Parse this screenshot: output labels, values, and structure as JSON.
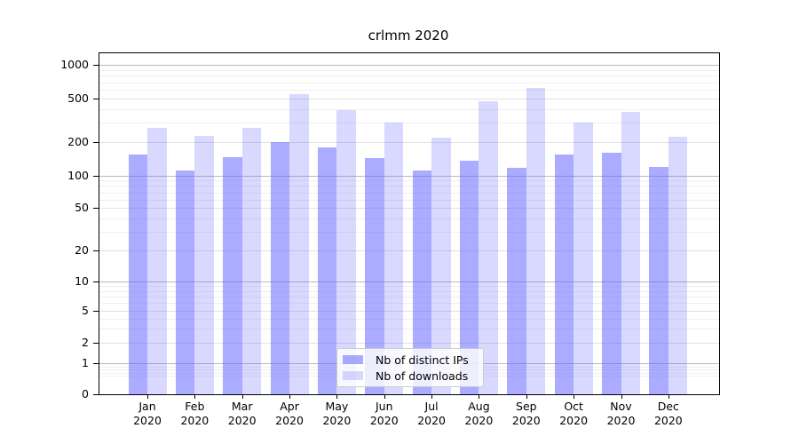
{
  "chart_data": {
    "type": "bar",
    "title": "crlmm 2020",
    "categories": [
      "Jan",
      "Feb",
      "Mar",
      "Apr",
      "May",
      "Jun",
      "Jul",
      "Aug",
      "Sep",
      "Oct",
      "Nov",
      "Dec"
    ],
    "x_year_line": "2020",
    "series": [
      {
        "name": "Nb of distinct IPs",
        "key": "distinct-ips",
        "fill": "rgba(102,102,255,0.55)",
        "values": [
          155,
          112,
          146,
          200,
          180,
          144,
          112,
          135,
          118,
          154,
          160,
          120
        ]
      },
      {
        "name": "Nb of downloads",
        "key": "downloads",
        "fill": "rgba(102,102,255,0.25)",
        "values": [
          270,
          230,
          270,
          550,
          390,
          300,
          220,
          470,
          620,
          300,
          380,
          225
        ]
      }
    ],
    "yscale": "symlog",
    "ylim": [
      0,
      1000
    ],
    "yticks": [
      0,
      1,
      2,
      5,
      10,
      20,
      50,
      100,
      200,
      500,
      1000
    ],
    "grid": true,
    "legend_position": "lower center",
    "colors": {
      "bar_base": "#6666ff",
      "grid_decade": "#bababa",
      "grid_major": "#e1e1e1",
      "grid_minor": "#efefef",
      "axis": "#000000",
      "legend_border": "#cccccc"
    }
  }
}
